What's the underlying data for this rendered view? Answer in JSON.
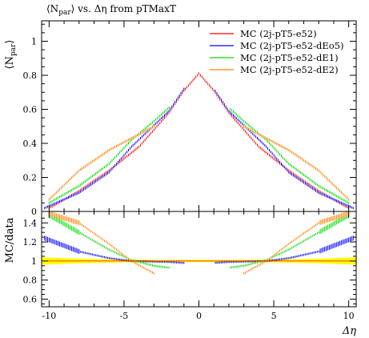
{
  "chart_data": {
    "type": "line",
    "title": "⟨N_par⟩ vs. Δη from pTMaxT",
    "xlabel": "Δη",
    "ylabel": "⟨N_par⟩",
    "ratio_ylabel": "MC/data",
    "xlim": [
      -10.5,
      10.5
    ],
    "ylim": [
      0,
      1.12
    ],
    "ratio_ylim": [
      0.52,
      1.52
    ],
    "xticks": [
      "-10",
      "-5",
      "0",
      "5",
      "10"
    ],
    "yticks": [
      "0",
      "0.2",
      "0.4",
      "0.6",
      "0.8",
      "1"
    ],
    "ratio_yticks": [
      "0.6",
      "0.8",
      "1",
      "1.2",
      "1.4"
    ],
    "legend_position": "top-right",
    "grid": false,
    "colors": {
      "reference": "#ff0000",
      "dEo5": "#0000ff",
      "dE1": "#00dd00",
      "dE2": "#ff8000",
      "band": "#ffff00"
    },
    "series": [
      {
        "name": "MC (2j-pT5-e52)",
        "x": [
          -10,
          -8,
          -6,
          -4,
          -2,
          -1,
          0,
          1,
          2,
          4,
          6,
          8,
          10
        ],
        "y": [
          0.02,
          0.12,
          0.24,
          0.38,
          0.58,
          0.71,
          0.81,
          0.71,
          0.58,
          0.38,
          0.24,
          0.12,
          0.02
        ],
        "ratio": [
          1.0,
          1.0,
          1.0,
          1.0,
          1.0,
          1.0,
          1.0,
          1.0,
          1.0,
          1.0,
          1.0,
          1.0,
          1.0
        ]
      },
      {
        "name": "MC (2j-pT5-e52-dEo5)",
        "x": [
          -10.3,
          -8,
          -6,
          -4.5,
          -2,
          -1,
          1,
          2,
          4.5,
          6,
          8,
          10.3
        ],
        "y": [
          0.02,
          0.11,
          0.23,
          0.38,
          0.59,
          0.72,
          0.72,
          0.59,
          0.38,
          0.23,
          0.11,
          0.02
        ],
        "ratio": [
          1.24,
          1.1,
          1.03,
          1.0,
          0.99,
          0.98,
          0.98,
          0.99,
          1.0,
          1.03,
          1.1,
          1.24
        ]
      },
      {
        "name": "MC (2j-pT5-e52-dE1)",
        "x": [
          -10,
          -8,
          -6,
          -4.5,
          -3,
          -2,
          2,
          3,
          4.5,
          6,
          8,
          10
        ],
        "y": [
          0.05,
          0.15,
          0.28,
          0.42,
          0.53,
          0.61,
          0.61,
          0.53,
          0.42,
          0.28,
          0.15,
          0.05
        ],
        "ratio": [
          1.48,
          1.3,
          1.12,
          1.01,
          0.95,
          0.93,
          0.93,
          0.95,
          1.01,
          1.12,
          1.3,
          1.48
        ]
      },
      {
        "name": "MC (2j-pT5-e52-dE2)",
        "x": [
          -10,
          -8,
          -6,
          -4.5,
          -3
        ],
        "y": [
          0.07,
          0.24,
          0.36,
          0.43,
          0.5
        ],
        "ratio": [
          1.5,
          1.4,
          1.18,
          1.0,
          0.87
        ]
      },
      {
        "name": "",
        "x": [
          3,
          4.5,
          6,
          8,
          10
        ],
        "y": [
          0.5,
          0.43,
          0.36,
          0.24,
          0.07
        ],
        "ratio": [
          0.87,
          1.0,
          1.18,
          1.4,
          1.5
        ]
      }
    ]
  }
}
